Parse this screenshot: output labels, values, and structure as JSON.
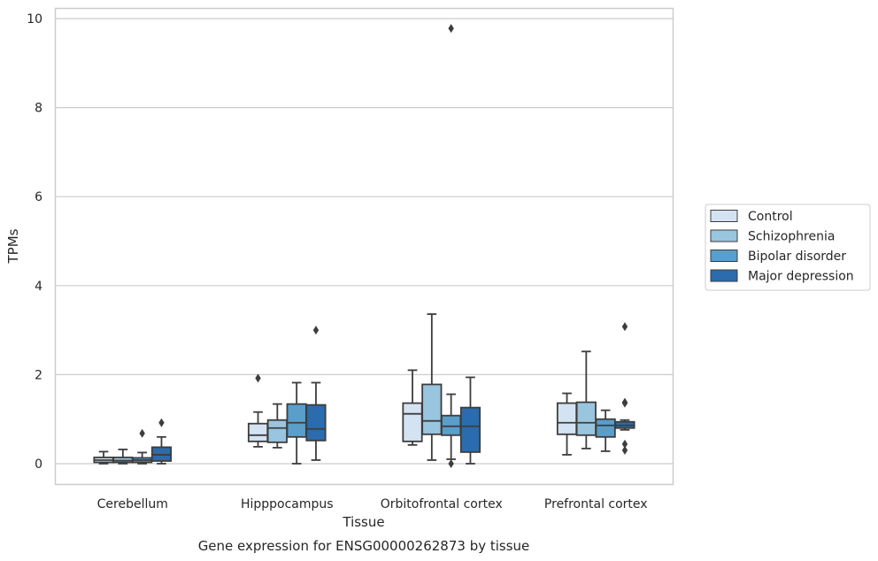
{
  "chart_data": {
    "type": "boxplot",
    "xlabel": "Tissue",
    "ylabel": "TPMs",
    "caption": "Gene expression for ENSG00000262873 by tissue",
    "categories": [
      "Cerebellum",
      "Hipppocampus",
      "Orbitofrontal cortex",
      "Prefrontal cortex"
    ],
    "ylim": [
      -0.45,
      10.25
    ],
    "yticks": [
      "0",
      "2",
      "4",
      "6",
      "8",
      "10"
    ],
    "grid": "horizontal",
    "legend_position": "right",
    "series": [
      {
        "name": "Control",
        "color": "#d4e3f1",
        "boxes": [
          {
            "whislo": 0.0,
            "q1": 0.03,
            "med": 0.08,
            "q3": 0.14,
            "whishi": 0.27,
            "fliers": []
          },
          {
            "whislo": 0.38,
            "q1": 0.5,
            "med": 0.64,
            "q3": 0.9,
            "whishi": 1.16,
            "fliers": [
              1.92
            ]
          },
          {
            "whislo": 0.42,
            "q1": 0.5,
            "med": 1.12,
            "q3": 1.36,
            "whishi": 2.1,
            "fliers": []
          },
          {
            "whislo": 0.2,
            "q1": 0.66,
            "med": 0.92,
            "q3": 1.36,
            "whishi": 1.58,
            "fliers": []
          }
        ]
      },
      {
        "name": "Schizophrenia",
        "color": "#9ac5df",
        "boxes": [
          {
            "whislo": 0.0,
            "q1": 0.03,
            "med": 0.07,
            "q3": 0.14,
            "whishi": 0.32,
            "fliers": []
          },
          {
            "whislo": 0.36,
            "q1": 0.48,
            "med": 0.8,
            "q3": 0.98,
            "whishi": 1.34,
            "fliers": []
          },
          {
            "whislo": 0.08,
            "q1": 0.66,
            "med": 0.96,
            "q3": 1.78,
            "whishi": 3.36,
            "fliers": []
          },
          {
            "whislo": 0.34,
            "q1": 0.64,
            "med": 0.92,
            "q3": 1.38,
            "whishi": 2.52,
            "fliers": []
          }
        ]
      },
      {
        "name": "Bipolar disorder",
        "color": "#5a9ec9",
        "boxes": [
          {
            "whislo": 0.0,
            "q1": 0.03,
            "med": 0.08,
            "q3": 0.13,
            "whishi": 0.25,
            "fliers": [
              0.68
            ]
          },
          {
            "whislo": 0.0,
            "q1": 0.6,
            "med": 0.92,
            "q3": 1.34,
            "whishi": 1.82,
            "fliers": []
          },
          {
            "whislo": 0.1,
            "q1": 0.64,
            "med": 0.84,
            "q3": 1.08,
            "whishi": 1.56,
            "fliers": [
              0.0,
              9.78
            ]
          },
          {
            "whislo": 0.28,
            "q1": 0.6,
            "med": 0.86,
            "q3": 1.0,
            "whishi": 1.2,
            "fliers": []
          }
        ]
      },
      {
        "name": "Major depression",
        "color": "#2a6cad",
        "boxes": [
          {
            "whislo": 0.0,
            "q1": 0.06,
            "med": 0.2,
            "q3": 0.37,
            "whishi": 0.6,
            "fliers": [
              0.92
            ]
          },
          {
            "whislo": 0.08,
            "q1": 0.52,
            "med": 0.78,
            "q3": 1.32,
            "whishi": 1.82,
            "fliers": [
              3.0
            ]
          },
          {
            "whislo": 0.0,
            "q1": 0.26,
            "med": 0.84,
            "q3": 1.26,
            "whishi": 1.94,
            "fliers": []
          },
          {
            "whislo": 0.76,
            "q1": 0.8,
            "med": 0.86,
            "q3": 0.94,
            "whishi": 0.98,
            "fliers": [
              0.3,
              0.44,
              1.36,
              1.38,
              3.08
            ]
          }
        ]
      }
    ]
  }
}
